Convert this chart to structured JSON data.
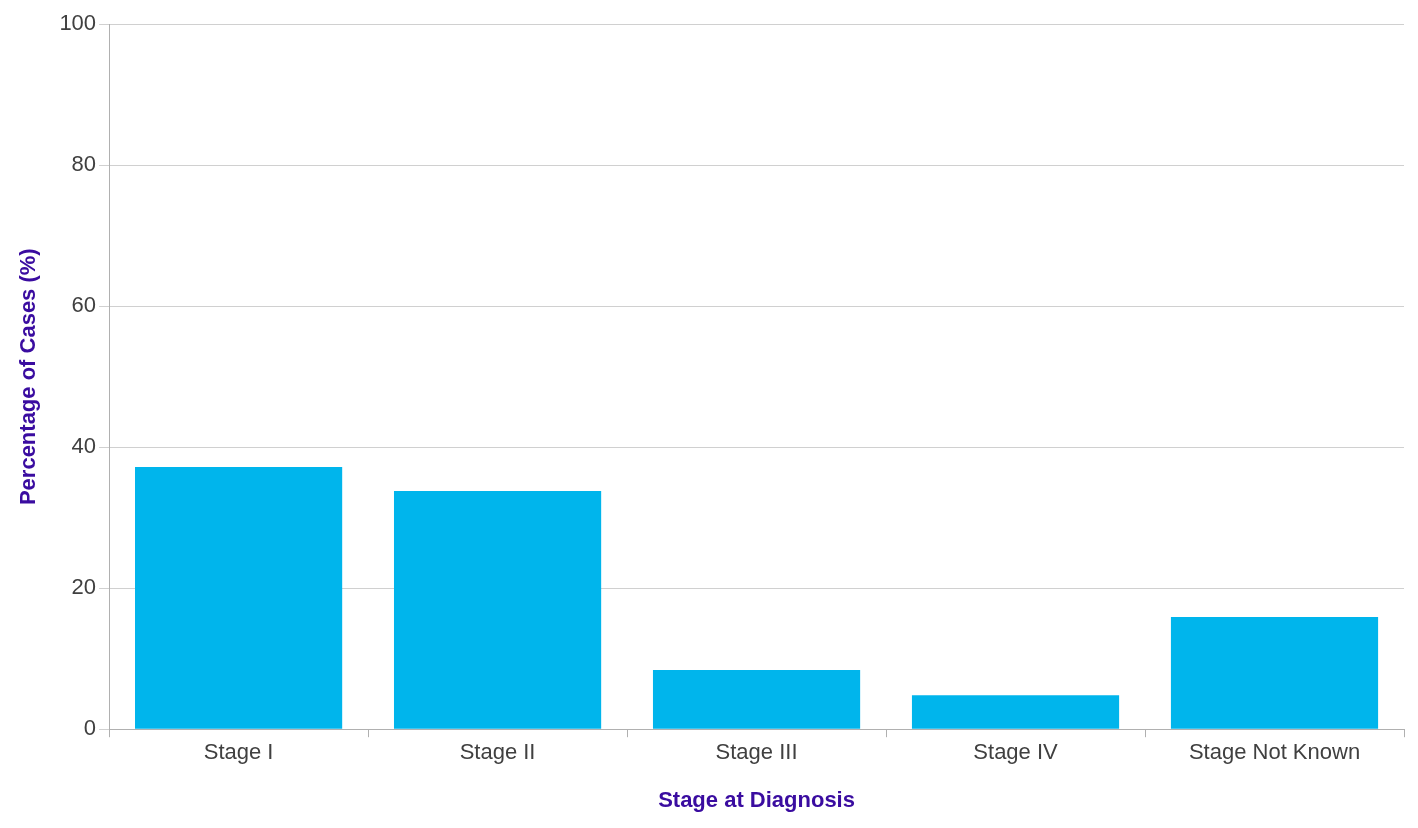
{
  "chart_data": {
    "type": "bar",
    "xlabel": "Stage at Diagnosis",
    "ylabel": "Percentage of Cases (%)",
    "categories": [
      "Stage I",
      "Stage II",
      "Stage III",
      "Stage IV",
      "Stage Not Known"
    ],
    "values": [
      37.2,
      33.8,
      8.4,
      4.8,
      15.9
    ],
    "color": "#00b5ec",
    "ylim": [
      0,
      100
    ],
    "yticks": [
      0,
      20,
      40,
      60,
      80,
      100
    ],
    "grid": "y",
    "legend": false
  }
}
